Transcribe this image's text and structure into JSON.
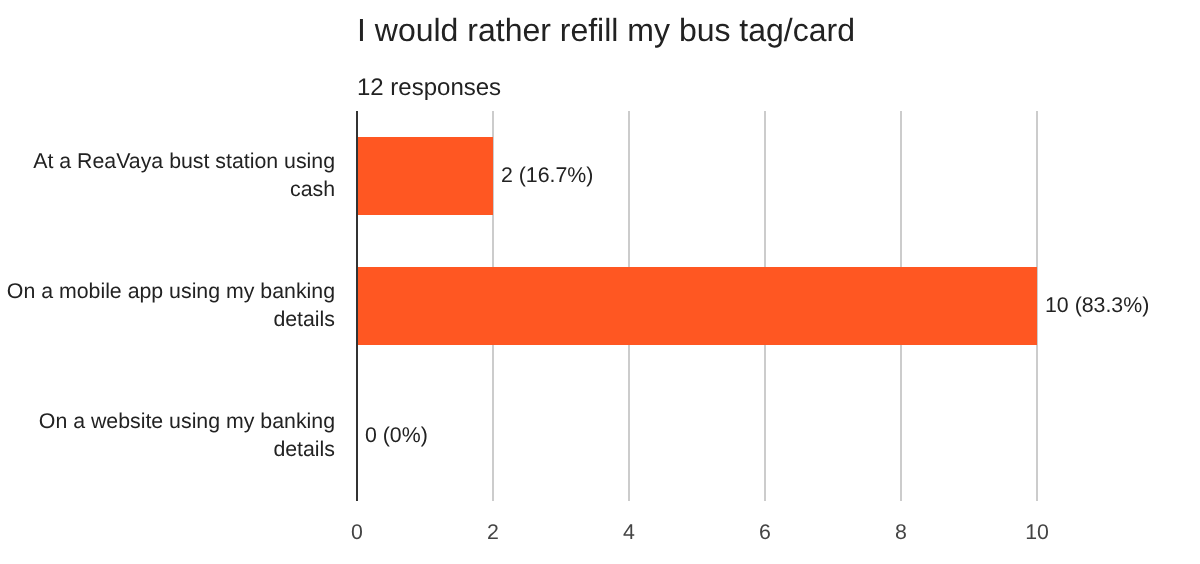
{
  "chart_data": {
    "type": "bar",
    "orientation": "horizontal",
    "title": "I would rather refill my bus tag/card",
    "subtitle": "12 responses",
    "categories": [
      "At a ReaVaya bust station using cash",
      "On a mobile app using my banking details",
      "On a website using my banking details"
    ],
    "values": [
      2,
      10,
      0
    ],
    "value_labels": [
      "2 (16.7%)",
      "10 (83.3%)",
      "0 (0%)"
    ],
    "color": "#ff5722",
    "xlim": [
      0,
      10
    ],
    "xticks": [
      0,
      2,
      4,
      6,
      8,
      10
    ],
    "grid": "x"
  }
}
